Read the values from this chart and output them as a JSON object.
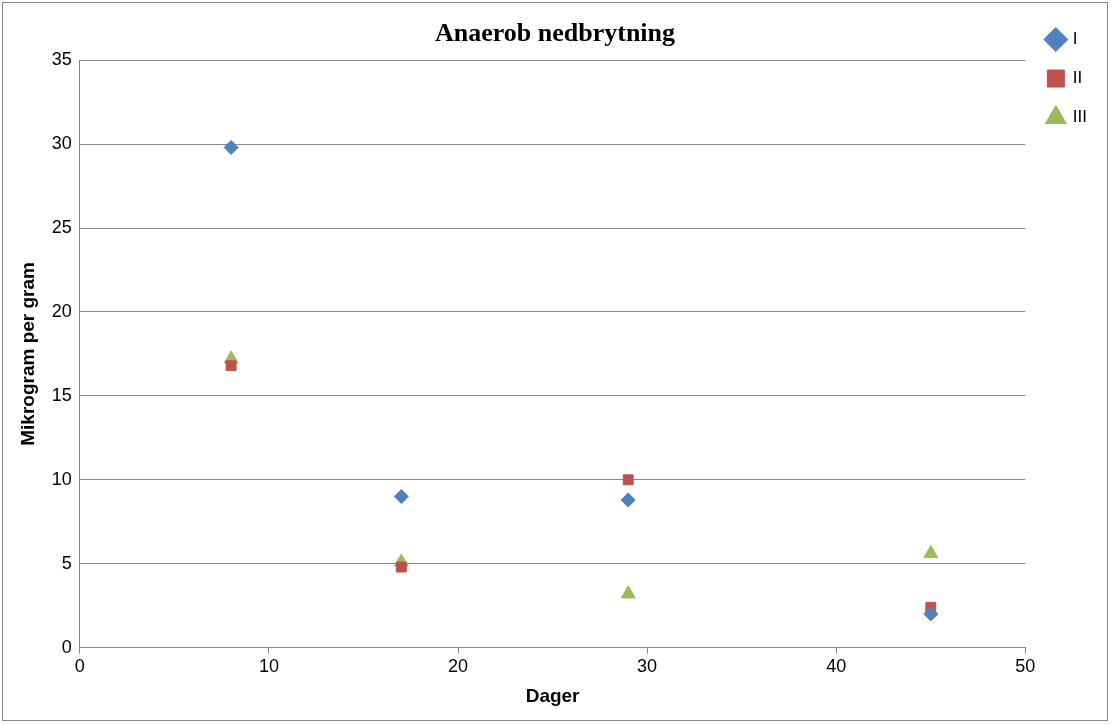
{
  "chart_data": {
    "type": "scatter",
    "title": "Anaerob nedbrytning",
    "xlabel": "Dager",
    "ylabel": "Mikrogram per gram",
    "x": [
      8,
      17,
      29,
      45
    ],
    "series": [
      {
        "name": "I",
        "color": "#4f81bd",
        "marker": "diamond",
        "values": [
          29.8,
          9.0,
          8.8,
          2.0
        ]
      },
      {
        "name": "II",
        "color": "#c0504d",
        "marker": "square",
        "values": [
          16.8,
          4.8,
          10.0,
          2.4
        ]
      },
      {
        "name": "III",
        "color": "#9bbb59",
        "marker": "triangle",
        "values": [
          17.2,
          5.1,
          3.2,
          5.6
        ]
      }
    ],
    "xlim": [
      0,
      50
    ],
    "xticks": [
      0,
      10,
      20,
      30,
      40,
      50
    ],
    "ylim": [
      0,
      35
    ],
    "yticks": [
      0,
      5,
      10,
      15,
      20,
      25,
      30,
      35
    ],
    "grid": "y",
    "legend": "right"
  }
}
